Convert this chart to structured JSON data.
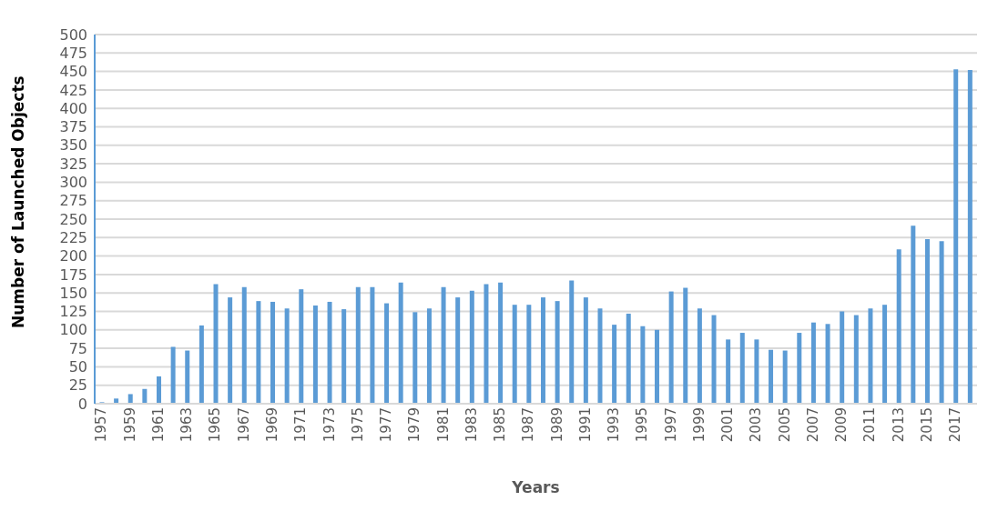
{
  "chart_data": {
    "type": "bar",
    "xlabel": "Years",
    "ylabel": "Number of Launched Objects",
    "categories": [
      "1957",
      null,
      "1959",
      null,
      "1961",
      null,
      "1963",
      null,
      "1965",
      null,
      "1967",
      null,
      "1969",
      null,
      "1971",
      null,
      "1973",
      null,
      "1975",
      null,
      "1977",
      null,
      "1979",
      null,
      "1981",
      null,
      "1983",
      null,
      "1985",
      null,
      "1987",
      null,
      "1989",
      null,
      "1991",
      null,
      "1993",
      null,
      "1995",
      null,
      "1997",
      null,
      "1999",
      null,
      "2001",
      null,
      "2003",
      null,
      "2005",
      null,
      "2007",
      null,
      "2009",
      null,
      "2011",
      null,
      "2013",
      null,
      "2015",
      null,
      "2017",
      null
    ],
    "values": [
      2,
      7,
      13,
      20,
      37,
      77,
      72,
      106,
      162,
      144,
      158,
      139,
      138,
      129,
      155,
      133,
      138,
      128,
      158,
      158,
      136,
      164,
      124,
      129,
      158,
      144,
      153,
      162,
      164,
      134,
      134,
      144,
      139,
      167,
      144,
      129,
      107,
      122,
      105,
      100,
      152,
      157,
      129,
      120,
      87,
      96,
      87,
      73,
      72,
      96,
      110,
      108,
      125,
      120,
      129,
      134,
      209,
      241,
      223,
      220,
      453,
      452
    ],
    "color": "#5b9bd5",
    "ylim": [
      0,
      500
    ],
    "yticks": [
      0,
      25,
      50,
      75,
      100,
      125,
      150,
      175,
      200,
      225,
      250,
      275,
      300,
      325,
      350,
      375,
      400,
      425,
      450,
      475,
      500
    ],
    "grid": "y"
  }
}
